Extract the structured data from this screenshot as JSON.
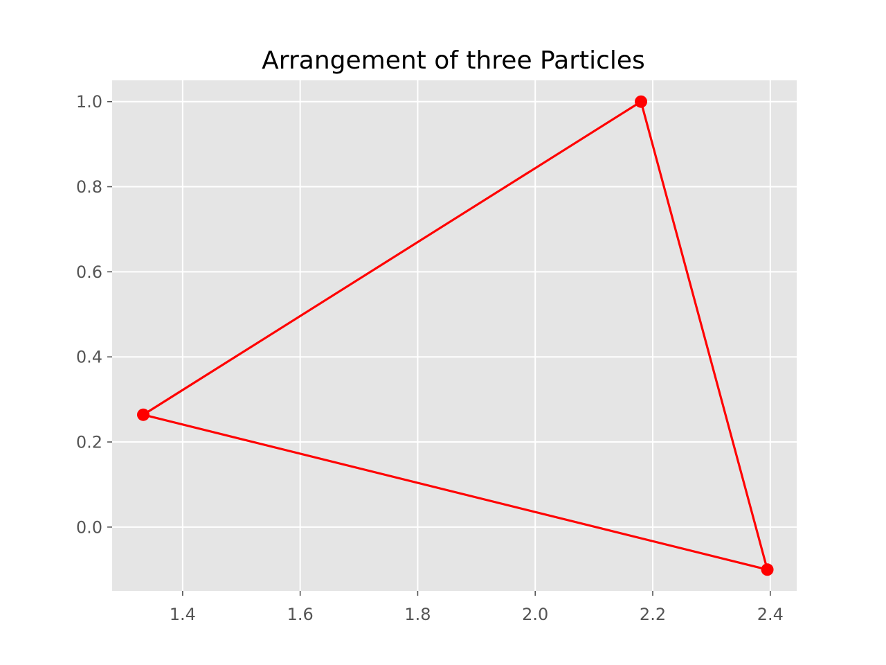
{
  "chart_data": {
    "type": "line",
    "title": "Arrangement of three Particles",
    "xlabel": "",
    "ylabel": "",
    "xlim": [
      1.28,
      2.445
    ],
    "ylim": [
      -0.15,
      1.05
    ],
    "x_ticks": [
      1.4,
      1.6,
      1.8,
      2.0,
      2.2,
      2.4
    ],
    "x_tick_labels": [
      "1.4",
      "1.6",
      "1.8",
      "2.0",
      "2.2",
      "2.4"
    ],
    "y_ticks": [
      0.0,
      0.2,
      0.4,
      0.6,
      0.8,
      1.0
    ],
    "y_tick_labels": [
      "0.0",
      "0.2",
      "0.4",
      "0.6",
      "0.8",
      "1.0"
    ],
    "grid": true,
    "legend": "none",
    "series": [
      {
        "color": "#ff0000",
        "marker": "circle",
        "closed": true,
        "x": [
          1.333,
          2.18,
          2.395
        ],
        "y": [
          0.264,
          1.0,
          -0.1
        ]
      }
    ],
    "colors": {
      "plot_background": "#e5e5e5",
      "grid": "#ffffff",
      "tick_label": "#555555"
    }
  }
}
